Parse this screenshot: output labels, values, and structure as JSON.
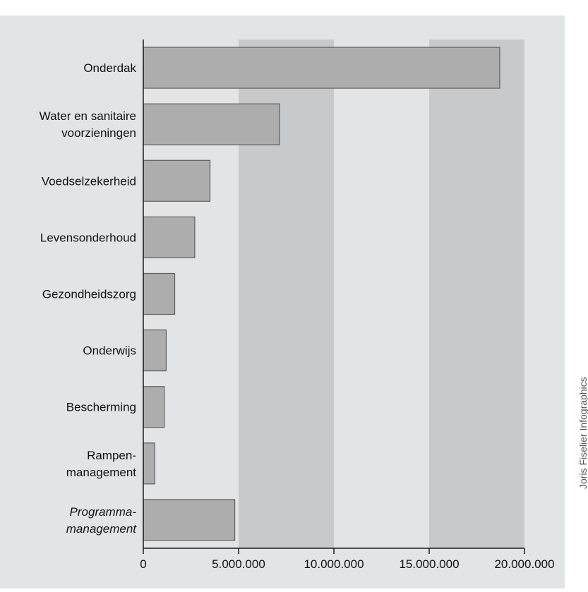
{
  "chart_data": {
    "type": "bar",
    "orientation": "horizontal",
    "categories": [
      "Onderdak",
      "Water en sanitaire voorzieningen",
      "Voedselzekerheid",
      "Levensonderhoud",
      "Gezondheidszorg",
      "Onderwijs",
      "Bescherming",
      "Rampen- management",
      "Programma- management"
    ],
    "category_lines": [
      [
        "Onderdak"
      ],
      [
        "Water en sanitaire",
        "voorzieningen"
      ],
      [
        "Voedselzekerheid"
      ],
      [
        "Levensonderhoud"
      ],
      [
        "Gezondheidszorg"
      ],
      [
        "Onderwijs"
      ],
      [
        "Bescherming"
      ],
      [
        "Rampen-",
        "management"
      ],
      [
        "Programma-",
        "management"
      ]
    ],
    "italic_categories": [
      "Programma- management"
    ],
    "values": [
      18700000,
      7150000,
      3500000,
      2700000,
      1650000,
      1200000,
      1100000,
      600000,
      4800000
    ],
    "xlim": [
      0,
      20000000
    ],
    "xticks": [
      0,
      5000000,
      10000000,
      15000000,
      20000000
    ],
    "xtick_labels": [
      "0",
      "5.000.000",
      "10.000.000",
      "15.000.000",
      "20.000.000"
    ],
    "bands": [
      [
        5000000,
        10000000
      ],
      [
        15000000,
        20000000
      ]
    ],
    "title": "",
    "xlabel": "",
    "ylabel": "",
    "grid": false,
    "legend": "none"
  },
  "colors": {
    "panel": "#e3e4e5",
    "band": "#c8c9ca",
    "bar_fill": "#adadae",
    "bar_stroke": "#5f5f60",
    "axis": "#1a1a1a",
    "text": "#111111"
  },
  "credit": "Joris Fiselier Infographics"
}
